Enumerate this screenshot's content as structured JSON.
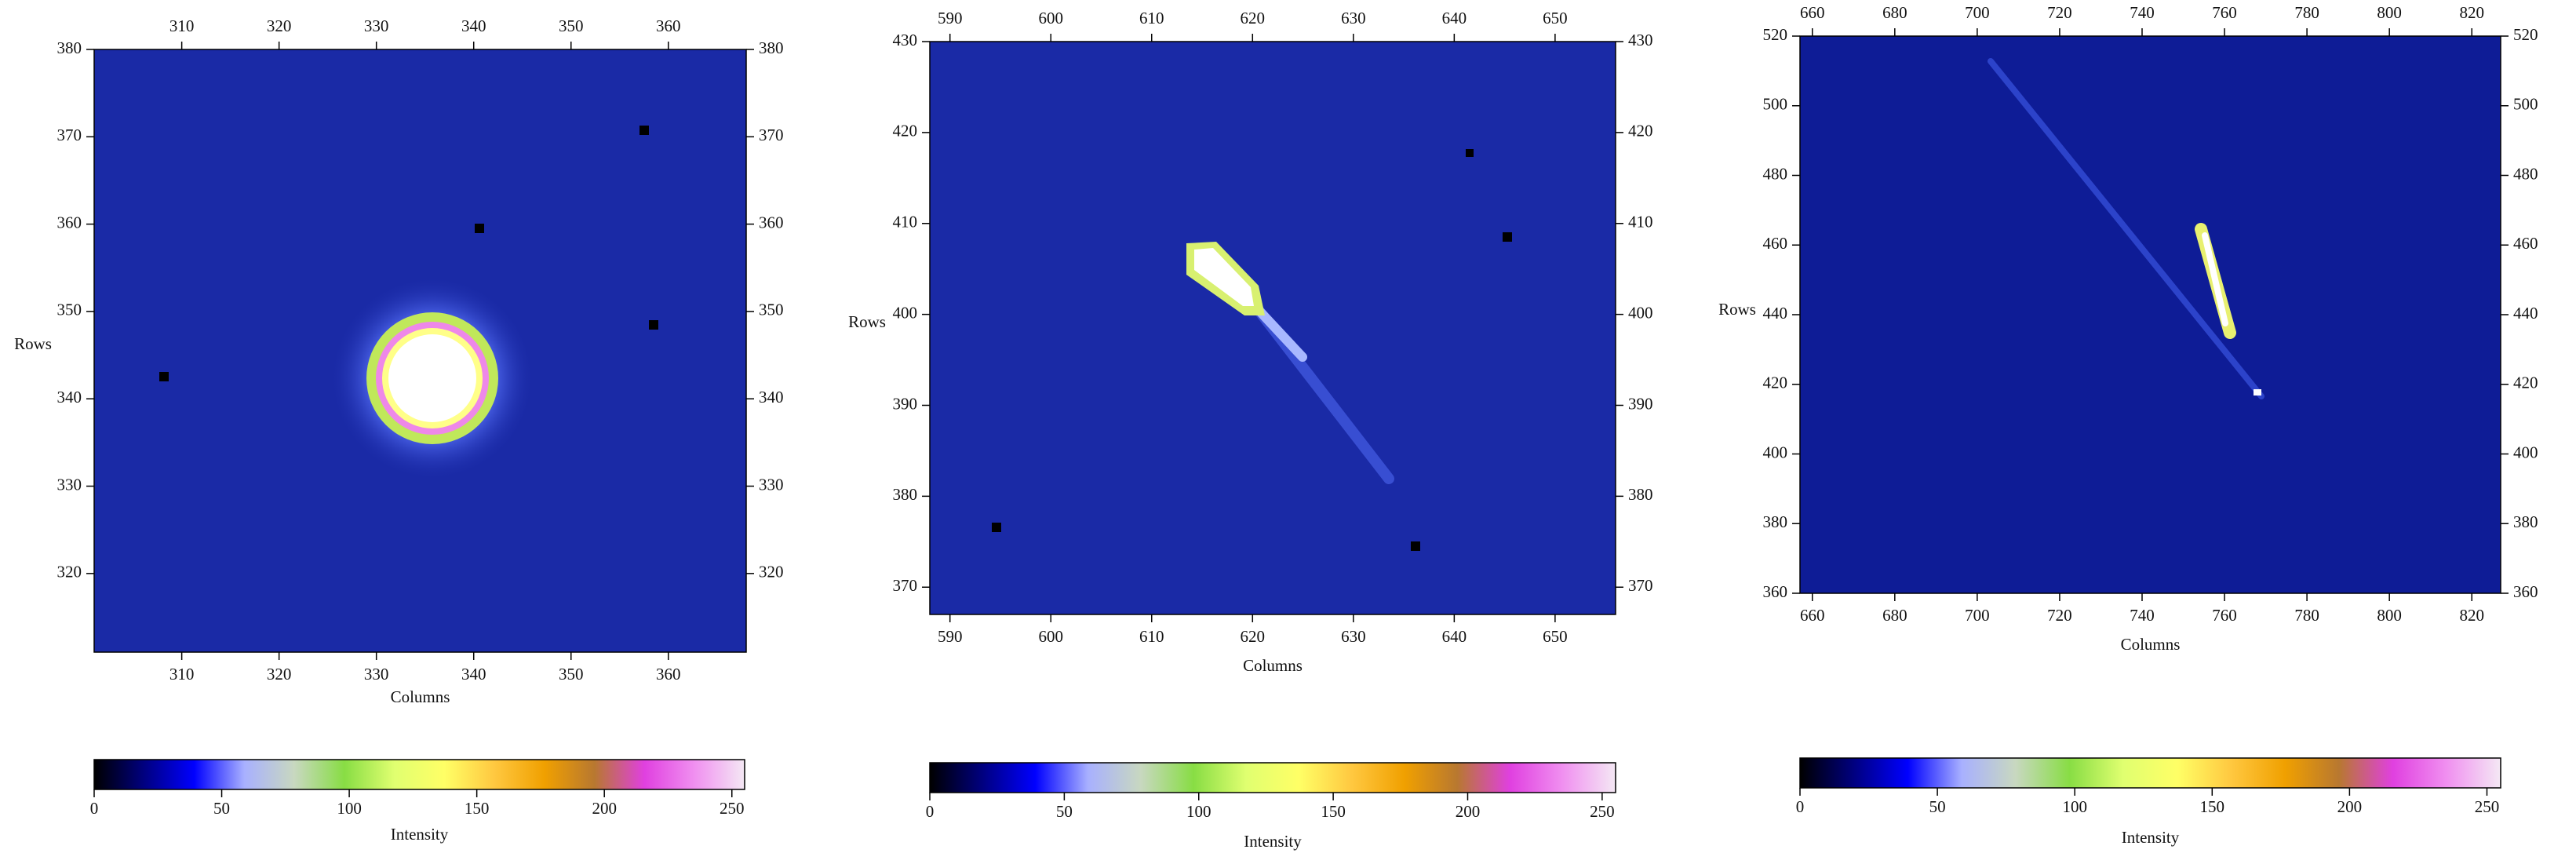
{
  "chart_data": [
    {
      "type": "heatmap",
      "xlabel": "Columns",
      "ylabel": "Rows",
      "xlim": [
        301,
        368
      ],
      "ylim": [
        311,
        380
      ],
      "xticks": [
        310,
        320,
        330,
        340,
        350,
        360
      ],
      "yticks": [
        320,
        330,
        340,
        350,
        360,
        370,
        380
      ],
      "colorbar": {
        "label": "Intensity",
        "lim": [
          0,
          255
        ],
        "ticks": [
          0,
          50,
          100,
          150,
          200,
          250
        ],
        "colors": [
          "#000000",
          "#000080",
          "#0000ff",
          "#a8b0ff",
          "#c8d8c0",
          "#88dd44",
          "#e0ff70",
          "#ffff66",
          "#ffc840",
          "#f0a000",
          "#b87830",
          "#e040e0",
          "#f090f0",
          "#f4e8f4"
        ]
      }
    },
    {
      "type": "heatmap",
      "xlabel": "Columns",
      "ylabel": "Rows",
      "xlim": [
        588,
        656
      ],
      "ylim": [
        367,
        430
      ],
      "xticks": [
        590,
        600,
        610,
        620,
        630,
        640,
        650
      ],
      "yticks": [
        370,
        380,
        390,
        400,
        410,
        420,
        430
      ],
      "colorbar": {
        "label": "Intensity",
        "lim": [
          0,
          255
        ],
        "ticks": [
          0,
          50,
          100,
          150,
          200,
          250
        ],
        "colors": [
          "#000000",
          "#000080",
          "#0000ff",
          "#a8b0ff",
          "#c8d8c0",
          "#88dd44",
          "#e0ff70",
          "#ffff66",
          "#ffc840",
          "#f0a000",
          "#b87830",
          "#e040e0",
          "#f090f0",
          "#f4e8f4"
        ]
      }
    },
    {
      "type": "heatmap",
      "xlabel": "Columns",
      "ylabel": "Rows",
      "xlim": [
        657,
        827
      ],
      "ylim": [
        360,
        520
      ],
      "xticks": [
        660,
        680,
        700,
        720,
        740,
        760,
        780,
        800,
        820
      ],
      "yticks": [
        360,
        380,
        400,
        420,
        440,
        460,
        480,
        500,
        520
      ],
      "colorbar": {
        "label": "Intensity",
        "lim": [
          0,
          255
        ],
        "ticks": [
          0,
          50,
          100,
          150,
          200,
          250
        ],
        "colors": [
          "#000000",
          "#000080",
          "#0000ff",
          "#a8b0ff",
          "#c8d8c0",
          "#88dd44",
          "#e0ff70",
          "#ffff66",
          "#ffc840",
          "#f0a000",
          "#b87830",
          "#e040e0",
          "#f090f0",
          "#f4e8f4"
        ]
      }
    }
  ]
}
